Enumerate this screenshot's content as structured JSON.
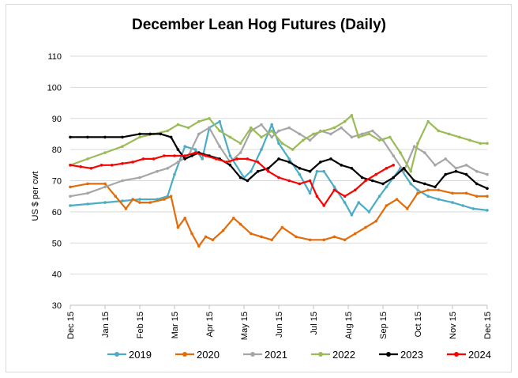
{
  "chart_data": {
    "type": "line",
    "title": "December Lean Hog Futures (Daily)",
    "xlabel": "",
    "ylabel": "US $ per cwt",
    "ylim": [
      30,
      110
    ],
    "yticks": [
      30,
      40,
      50,
      60,
      70,
      80,
      90,
      100,
      110
    ],
    "x_ticks": [
      "Dec 15",
      "Jan 15",
      "Feb 15",
      "Mar 15",
      "Apr 15",
      "May 15",
      "Jun 15",
      "Jul 15",
      "Aug 15",
      "Sep 15",
      "Oct 15",
      "Nov 15",
      "Dec 15"
    ],
    "x_unit": "month from Dec 15 (0 = Dec 15, 12 = following Dec 15)",
    "grid": "horizontal",
    "legend": "bottom",
    "series": [
      {
        "name": "2019",
        "color": "#4bacc6",
        "x": [
          0,
          0.5,
          1,
          1.5,
          2,
          2.5,
          2.8,
          3.0,
          3.3,
          3.6,
          3.8,
          4.0,
          4.3,
          4.6,
          5.0,
          5.2,
          5.5,
          5.8,
          6.0,
          6.3,
          6.6,
          6.9,
          7.1,
          7.3,
          7.6,
          7.9,
          8.1,
          8.3,
          8.6,
          8.9,
          9.1,
          9.3,
          9.5,
          9.8,
          10.0,
          10.3,
          10.6,
          11.0,
          11.3,
          11.6,
          12.0
        ],
        "y": [
          62,
          62.5,
          63,
          63.5,
          64,
          64,
          65,
          72,
          81,
          80,
          77,
          87,
          89,
          78,
          71,
          73,
          80,
          88,
          82,
          77,
          72,
          66,
          73,
          73,
          68,
          63,
          59,
          63,
          60,
          65,
          68,
          71,
          74,
          69,
          67,
          65,
          64,
          63,
          62,
          61,
          60.5
        ]
      },
      {
        "name": "2020",
        "color": "#e36c0a",
        "x": [
          0,
          0.5,
          1,
          1.3,
          1.6,
          1.8,
          2.0,
          2.3,
          2.7,
          2.9,
          3.1,
          3.3,
          3.5,
          3.7,
          3.9,
          4.1,
          4.4,
          4.7,
          4.9,
          5.2,
          5.5,
          5.8,
          6.1,
          6.5,
          6.9,
          7.3,
          7.6,
          7.9,
          8.2,
          8.5,
          8.8,
          9.1,
          9.4,
          9.7,
          10.0,
          10.3,
          10.6,
          11.0,
          11.4,
          11.7,
          12.0
        ],
        "y": [
          68,
          69,
          69,
          65,
          61,
          64,
          63,
          63,
          64,
          65,
          55,
          58,
          53,
          49,
          52,
          51,
          54,
          58,
          56,
          53,
          52,
          51,
          55,
          52,
          51,
          51,
          52,
          51,
          53,
          55,
          57,
          62,
          64,
          61,
          66,
          67,
          67,
          66,
          66,
          65,
          65
        ]
      },
      {
        "name": "2021",
        "color": "#a6a6a6",
        "x": [
          0,
          0.5,
          1,
          1.5,
          2,
          2.5,
          2.8,
          3.1,
          3.4,
          3.7,
          4.0,
          4.3,
          4.6,
          4.9,
          5.2,
          5.5,
          5.8,
          6.0,
          6.3,
          6.6,
          6.9,
          7.2,
          7.5,
          7.8,
          8.1,
          8.4,
          8.7,
          9.0,
          9.3,
          9.6,
          9.9,
          10.2,
          10.5,
          10.8,
          11.1,
          11.4,
          11.7,
          12.0
        ],
        "y": [
          65,
          66,
          68,
          70,
          71,
          73,
          74,
          76,
          78,
          85,
          87,
          81,
          76,
          79,
          86,
          88,
          84,
          86,
          87,
          85,
          83,
          86,
          85,
          87,
          84,
          85,
          86,
          83,
          78,
          73,
          81,
          79,
          75,
          77,
          74,
          75,
          73,
          72
        ]
      },
      {
        "name": "2022",
        "color": "#9bbb59",
        "x": [
          0,
          0.5,
          1,
          1.5,
          2,
          2.4,
          2.8,
          3.1,
          3.4,
          3.7,
          4.0,
          4.3,
          4.6,
          4.9,
          5.2,
          5.5,
          5.8,
          6.1,
          6.4,
          6.7,
          7.0,
          7.3,
          7.6,
          7.9,
          8.1,
          8.3,
          8.6,
          8.9,
          9.2,
          9.5,
          9.8,
          10.0,
          10.3,
          10.6,
          10.9,
          11.2,
          11.5,
          11.8,
          12.0
        ],
        "y": [
          75,
          77,
          79,
          81,
          84,
          85,
          86,
          88,
          87,
          89,
          90,
          86,
          84,
          82,
          87,
          84,
          86,
          82,
          80,
          83,
          85,
          86,
          87,
          89,
          91,
          84,
          85,
          83,
          84,
          79,
          73,
          82,
          89,
          86,
          85,
          84,
          83,
          82,
          82
        ]
      },
      {
        "name": "2023",
        "color": "#000000",
        "x": [
          0,
          0.5,
          1,
          1.5,
          2,
          2.3,
          2.6,
          2.9,
          3.1,
          3.3,
          3.5,
          3.7,
          4.0,
          4.3,
          4.6,
          4.9,
          5.1,
          5.4,
          5.7,
          6.0,
          6.3,
          6.6,
          6.9,
          7.2,
          7.5,
          7.8,
          8.1,
          8.4,
          8.7,
          9.0,
          9.3,
          9.6,
          9.9,
          10.2,
          10.5,
          10.8,
          11.1,
          11.4,
          11.7,
          12.0
        ],
        "y": [
          84,
          84,
          84,
          84,
          85,
          85,
          85,
          84,
          80,
          77,
          78,
          79,
          78,
          77,
          75,
          71,
          70,
          73,
          74,
          77,
          76,
          74,
          73,
          76,
          77,
          75,
          74,
          71,
          70,
          69,
          71,
          74,
          70,
          69,
          68,
          72,
          73,
          72,
          69,
          67.5
        ]
      },
      {
        "name": "2024",
        "color": "#ff0000",
        "x": [
          0,
          0.3,
          0.6,
          0.9,
          1.2,
          1.5,
          1.8,
          2.1,
          2.4,
          2.7,
          3.0,
          3.3,
          3.6,
          3.9,
          4.2,
          4.5,
          4.8,
          5.1,
          5.4,
          5.7,
          6.0,
          6.3,
          6.6,
          6.9,
          7.1,
          7.3,
          7.6,
          7.9,
          8.2,
          8.5,
          8.8,
          9.1,
          9.3
        ],
        "y": [
          75,
          74.5,
          74,
          75,
          75,
          75.5,
          76,
          77,
          77,
          78,
          78,
          78,
          79,
          78,
          77,
          76,
          77,
          77,
          76,
          73,
          71,
          70,
          69,
          70,
          65,
          62,
          67,
          65,
          67,
          70,
          72,
          74,
          75
        ]
      }
    ]
  }
}
